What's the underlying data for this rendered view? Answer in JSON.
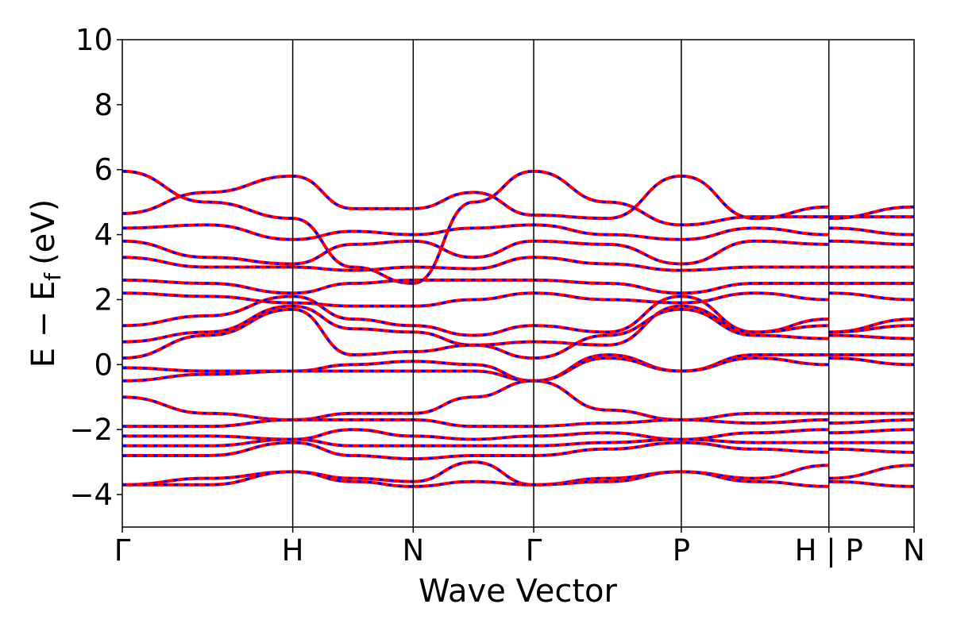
{
  "chart_data": {
    "type": "line",
    "xlabel": "Wave Vector",
    "ylabel": {
      "main": "E − E",
      "sub": "f",
      "unit": "(eV)"
    },
    "ylim": [
      -5,
      10
    ],
    "yticks": [
      "−4",
      "−2",
      "0",
      "2",
      "4",
      "6",
      "8",
      "10"
    ],
    "ytick_values": [
      -4,
      -2,
      0,
      2,
      4,
      6,
      8,
      10
    ],
    "kpoints": [
      {
        "label": "Γ",
        "x": 0.0
      },
      {
        "label": "H",
        "x": 1.0
      },
      {
        "label": "N",
        "x": 1.707
      },
      {
        "label": "Γ",
        "x": 2.414
      },
      {
        "label": "P",
        "x": 3.28
      },
      {
        "label": "H | P",
        "x": 4.146
      },
      {
        "label": "N",
        "x": 4.646
      }
    ],
    "discontinuity_x": 4.146,
    "grid": false,
    "legend": "none",
    "colors": {
      "red_series": "#ff0000",
      "blue_series": "#0000ff"
    },
    "series_style": "red line overlaid with blue dashed line (identical bands)",
    "bands": [
      {
        "E": [
          5.95,
          5.0,
          4.5,
          3.0,
          2.5,
          5.0,
          5.95,
          5.0,
          4.3,
          4.55,
          4.55
        ]
      },
      {
        "E": [
          4.65,
          5.3,
          5.8,
          4.8,
          4.8,
          5.3,
          4.6,
          4.5,
          5.8,
          4.5,
          4.85
        ]
      },
      {
        "E": [
          4.2,
          4.3,
          3.85,
          4.1,
          4.0,
          4.2,
          4.3,
          4.0,
          3.85,
          4.2,
          4.0
        ]
      },
      {
        "E": [
          3.8,
          3.3,
          3.1,
          3.7,
          3.8,
          3.3,
          3.8,
          3.7,
          3.1,
          3.8,
          3.7
        ]
      },
      {
        "E": [
          3.3,
          3.0,
          3.0,
          2.9,
          3.0,
          2.95,
          3.3,
          3.1,
          2.9,
          3.0,
          3.0
        ]
      },
      {
        "E": [
          2.6,
          2.5,
          2.2,
          2.5,
          2.6,
          2.6,
          2.6,
          2.5,
          2.2,
          2.5,
          2.5
        ]
      },
      {
        "E": [
          2.2,
          2.1,
          1.9,
          1.8,
          1.8,
          2.0,
          2.2,
          2.0,
          1.9,
          2.2,
          2.0
        ]
      },
      {
        "E": [
          1.2,
          1.5,
          2.1,
          1.4,
          1.2,
          0.9,
          1.2,
          1.0,
          2.1,
          1.0,
          1.4
        ]
      },
      {
        "E": [
          0.7,
          1.0,
          1.8,
          1.1,
          1.0,
          0.6,
          0.7,
          0.6,
          1.8,
          1.0,
          1.2
        ]
      },
      {
        "E": [
          0.2,
          0.9,
          1.7,
          0.3,
          0.4,
          0.6,
          0.2,
          0.9,
          1.7,
          0.9,
          0.8
        ]
      },
      {
        "E": [
          -0.1,
          -0.2,
          -0.2,
          0.0,
          0.1,
          0.0,
          -0.5,
          0.3,
          -0.2,
          0.3,
          0.3
        ]
      },
      {
        "E": [
          -0.5,
          -0.3,
          -0.2,
          -0.2,
          -0.2,
          -0.2,
          -0.5,
          0.2,
          -0.2,
          0.2,
          0.0
        ]
      },
      {
        "E": [
          -1.0,
          -1.5,
          -1.7,
          -1.5,
          -1.5,
          -1.0,
          -0.5,
          -1.4,
          -1.7,
          -1.5,
          -1.5
        ]
      },
      {
        "E": [
          -1.9,
          -1.9,
          -1.7,
          -1.7,
          -1.7,
          -1.9,
          -1.9,
          -1.8,
          -1.7,
          -1.8,
          -1.7
        ]
      },
      {
        "E": [
          -2.2,
          -2.2,
          -2.3,
          -2.0,
          -2.2,
          -2.3,
          -2.2,
          -2.1,
          -2.3,
          -2.1,
          -2.0
        ]
      },
      {
        "E": [
          -2.5,
          -2.5,
          -2.3,
          -2.5,
          -2.5,
          -2.5,
          -2.5,
          -2.4,
          -2.3,
          -2.4,
          -2.4
        ]
      },
      {
        "E": [
          -2.8,
          -2.8,
          -2.4,
          -2.8,
          -2.9,
          -2.8,
          -2.8,
          -2.6,
          -2.4,
          -2.6,
          -2.7
        ]
      },
      {
        "E": [
          -3.7,
          -3.5,
          -3.3,
          -3.5,
          -3.6,
          -3.0,
          -3.7,
          -3.5,
          -3.3,
          -3.5,
          -3.1
        ]
      },
      {
        "E": [
          -3.7,
          -3.7,
          -3.3,
          -3.6,
          -3.75,
          -3.6,
          -3.7,
          -3.6,
          -3.3,
          -3.6,
          -3.75
        ]
      }
    ]
  }
}
